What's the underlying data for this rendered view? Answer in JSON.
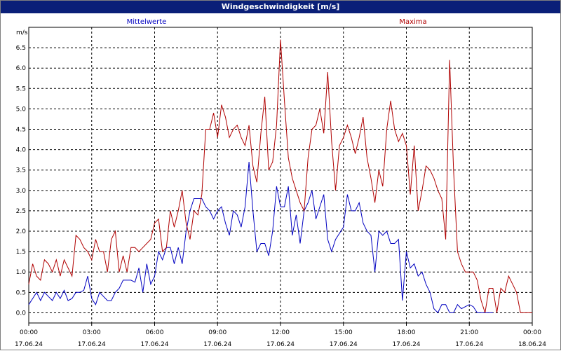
{
  "window": {
    "title": "Windgeschwindigkeit [m/s]"
  },
  "chart_data": {
    "type": "line",
    "title": "Windgeschwindigkeit [m/s]",
    "ylabel": "m/s",
    "ylim": [
      -0.25,
      7.0
    ],
    "yticks": [
      "0.0",
      "0.5",
      "1.0",
      "1.5",
      "2.0",
      "2.5",
      "3.0",
      "3.5",
      "4.0",
      "4.5",
      "5.0",
      "5.5",
      "6.0",
      "6.5"
    ],
    "xticks": [
      {
        "time": "00:00",
        "date": "17.06.24"
      },
      {
        "time": "03:00",
        "date": "17.06.24"
      },
      {
        "time": "06:00",
        "date": "17.06.24"
      },
      {
        "time": "09:00",
        "date": "17.06.24"
      },
      {
        "time": "12:00",
        "date": "17.06.24"
      },
      {
        "time": "15:00",
        "date": "17.06.24"
      },
      {
        "time": "18:00",
        "date": "17.06.24"
      },
      {
        "time": "21:00",
        "date": "17.06.24"
      },
      {
        "time": "00:00",
        "date": "18.06.24"
      }
    ],
    "x_unit": "hours since 17.06.24 00:00",
    "grid": true,
    "series": [
      {
        "name": "Mittelwerte",
        "color": "#0000c0",
        "points": [
          [
            0.0,
            0.2
          ],
          [
            0.25,
            0.35
          ],
          [
            0.5,
            0.5
          ],
          [
            0.75,
            0.3
          ],
          [
            1.0,
            0.5
          ],
          [
            1.25,
            0.4
          ],
          [
            1.5,
            0.3
          ],
          [
            1.75,
            0.5
          ],
          [
            2.0,
            0.35
          ],
          [
            2.25,
            0.55
          ],
          [
            2.5,
            0.3
          ],
          [
            2.75,
            0.35
          ],
          [
            3.0,
            0.5
          ],
          [
            3.25,
            0.5
          ],
          [
            3.5,
            0.55
          ],
          [
            3.75,
            0.9
          ],
          [
            4.0,
            0.35
          ],
          [
            4.25,
            0.2
          ],
          [
            4.5,
            0.5
          ],
          [
            4.75,
            0.4
          ],
          [
            5.0,
            0.3
          ],
          [
            5.25,
            0.3
          ],
          [
            5.5,
            0.5
          ],
          [
            5.75,
            0.6
          ],
          [
            6.0,
            0.8
          ],
          [
            6.25,
            0.8
          ],
          [
            6.5,
            0.8
          ],
          [
            6.75,
            0.75
          ],
          [
            7.0,
            1.1
          ],
          [
            7.25,
            0.5
          ],
          [
            7.5,
            1.2
          ],
          [
            7.75,
            0.7
          ],
          [
            8.0,
            0.9
          ],
          [
            8.25,
            1.5
          ],
          [
            8.5,
            1.3
          ],
          [
            8.75,
            1.6
          ],
          [
            9.0,
            1.6
          ],
          [
            9.25,
            1.2
          ],
          [
            9.5,
            1.6
          ],
          [
            9.75,
            1.2
          ],
          [
            10.0,
            2.0
          ],
          [
            10.25,
            2.5
          ],
          [
            10.5,
            2.8
          ],
          [
            10.75,
            2.8
          ],
          [
            11.0,
            2.8
          ],
          [
            11.25,
            2.6
          ],
          [
            11.5,
            2.5
          ],
          [
            11.75,
            2.3
          ],
          [
            12.0,
            2.5
          ],
          [
            12.25,
            2.6
          ],
          [
            12.5,
            2.2
          ],
          [
            12.75,
            1.9
          ],
          [
            13.0,
            2.5
          ],
          [
            13.25,
            2.4
          ],
          [
            13.5,
            2.1
          ],
          [
            13.75,
            2.6
          ],
          [
            14.0,
            3.7
          ],
          [
            14.25,
            2.5
          ],
          [
            14.5,
            1.5
          ],
          [
            14.75,
            1.7
          ],
          [
            15.0,
            1.7
          ],
          [
            15.25,
            1.4
          ],
          [
            15.5,
            2.0
          ],
          [
            15.75,
            3.1
          ],
          [
            16.0,
            2.6
          ],
          [
            16.25,
            2.6
          ],
          [
            16.5,
            3.1
          ],
          [
            16.75,
            1.9
          ],
          [
            17.0,
            2.4
          ],
          [
            17.25,
            1.7
          ],
          [
            17.5,
            2.5
          ],
          [
            17.75,
            2.7
          ],
          [
            18.0,
            3.0
          ],
          [
            18.25,
            2.3
          ],
          [
            18.5,
            2.6
          ],
          [
            18.75,
            2.9
          ],
          [
            19.0,
            1.8
          ],
          [
            19.25,
            1.5
          ],
          [
            19.5,
            1.8
          ],
          [
            20.0,
            2.1
          ],
          [
            20.25,
            2.9
          ],
          [
            20.5,
            2.5
          ],
          [
            20.75,
            2.5
          ],
          [
            21.0,
            2.7
          ],
          [
            21.25,
            2.2
          ],
          [
            21.5,
            2.0
          ],
          [
            21.75,
            1.9
          ],
          [
            22.0,
            1.0
          ],
          [
            22.25,
            2.0
          ],
          [
            22.5,
            1.9
          ],
          [
            22.75,
            2.0
          ],
          [
            23.0,
            1.7
          ],
          [
            23.25,
            1.7
          ],
          [
            23.5,
            1.8
          ],
          [
            23.75,
            0.3
          ],
          [
            24.0,
            1.5
          ],
          [
            24.25,
            1.1
          ],
          [
            24.5,
            1.2
          ],
          [
            24.75,
            0.9
          ],
          [
            25.0,
            1.0
          ],
          [
            25.25,
            0.7
          ],
          [
            25.5,
            0.5
          ],
          [
            25.75,
            0.1
          ],
          [
            26.0,
            0.0
          ],
          [
            26.25,
            0.2
          ],
          [
            26.5,
            0.2
          ],
          [
            26.75,
            0.0
          ],
          [
            27.0,
            0.0
          ],
          [
            27.25,
            0.2
          ],
          [
            27.5,
            0.1
          ],
          [
            27.75,
            0.15
          ],
          [
            28.0,
            0.2
          ],
          [
            28.25,
            0.15
          ],
          [
            28.5,
            0.0
          ],
          [
            28.75,
            0.0
          ],
          [
            29.0,
            0.0
          ],
          [
            29.5,
            0.0
          ]
        ]
      },
      {
        "name": "Maxima",
        "color": "#b00000",
        "points": [
          [
            0.0,
            0.7
          ],
          [
            0.25,
            1.2
          ],
          [
            0.5,
            0.9
          ],
          [
            0.75,
            0.8
          ],
          [
            1.0,
            1.3
          ],
          [
            1.25,
            1.2
          ],
          [
            1.5,
            1.0
          ],
          [
            1.75,
            1.3
          ],
          [
            2.0,
            0.9
          ],
          [
            2.25,
            1.3
          ],
          [
            2.5,
            1.1
          ],
          [
            2.75,
            0.9
          ],
          [
            3.0,
            1.9
          ],
          [
            3.25,
            1.8
          ],
          [
            3.5,
            1.6
          ],
          [
            3.75,
            1.5
          ],
          [
            4.0,
            1.3
          ],
          [
            4.25,
            1.8
          ],
          [
            4.5,
            1.5
          ],
          [
            4.75,
            1.5
          ],
          [
            5.0,
            1.0
          ],
          [
            5.25,
            1.8
          ],
          [
            5.5,
            2.0
          ],
          [
            5.75,
            1.0
          ],
          [
            6.0,
            1.4
          ],
          [
            6.25,
            1.0
          ],
          [
            6.5,
            1.6
          ],
          [
            6.75,
            1.6
          ],
          [
            7.0,
            1.5
          ],
          [
            7.25,
            1.6
          ],
          [
            7.5,
            1.7
          ],
          [
            7.75,
            1.8
          ],
          [
            8.0,
            2.2
          ],
          [
            8.25,
            2.3
          ],
          [
            8.5,
            1.5
          ],
          [
            8.75,
            1.6
          ],
          [
            9.0,
            2.5
          ],
          [
            9.25,
            2.1
          ],
          [
            9.5,
            2.5
          ],
          [
            9.75,
            3.0
          ],
          [
            10.0,
            2.2
          ],
          [
            10.25,
            1.8
          ],
          [
            10.5,
            2.5
          ],
          [
            10.75,
            2.4
          ],
          [
            11.0,
            2.9
          ],
          [
            11.25,
            4.5
          ],
          [
            11.5,
            4.5
          ],
          [
            11.75,
            4.9
          ],
          [
            12.0,
            4.3
          ],
          [
            12.25,
            5.1
          ],
          [
            12.5,
            4.8
          ],
          [
            12.75,
            4.3
          ],
          [
            13.0,
            4.5
          ],
          [
            13.25,
            4.6
          ],
          [
            13.5,
            4.3
          ],
          [
            13.75,
            4.1
          ],
          [
            14.0,
            4.6
          ],
          [
            14.25,
            3.6
          ],
          [
            14.5,
            3.2
          ],
          [
            14.75,
            4.4
          ],
          [
            15.0,
            5.3
          ],
          [
            15.25,
            3.5
          ],
          [
            15.5,
            3.7
          ],
          [
            15.75,
            4.6
          ],
          [
            16.0,
            6.7
          ],
          [
            16.25,
            5.2
          ],
          [
            16.5,
            3.8
          ],
          [
            16.75,
            3.3
          ],
          [
            17.0,
            3.0
          ],
          [
            17.25,
            2.7
          ],
          [
            17.5,
            2.5
          ],
          [
            17.75,
            3.8
          ],
          [
            18.0,
            4.5
          ],
          [
            18.25,
            4.6
          ],
          [
            18.5,
            5.0
          ],
          [
            18.75,
            4.4
          ],
          [
            19.0,
            5.9
          ],
          [
            19.25,
            4.2
          ],
          [
            19.5,
            3.0
          ],
          [
            19.75,
            4.1
          ],
          [
            20.0,
            4.3
          ],
          [
            20.25,
            4.6
          ],
          [
            20.5,
            4.3
          ],
          [
            20.75,
            3.9
          ],
          [
            21.0,
            4.3
          ],
          [
            21.25,
            4.8
          ],
          [
            21.5,
            3.8
          ],
          [
            21.75,
            3.3
          ],
          [
            22.0,
            2.7
          ],
          [
            22.25,
            3.5
          ],
          [
            22.5,
            3.1
          ],
          [
            22.75,
            4.5
          ],
          [
            23.0,
            5.2
          ],
          [
            23.25,
            4.5
          ],
          [
            23.5,
            4.2
          ],
          [
            23.75,
            4.4
          ],
          [
            24.0,
            4.1
          ],
          [
            24.25,
            2.9
          ],
          [
            24.5,
            4.1
          ],
          [
            24.75,
            2.5
          ],
          [
            25.0,
            3.0
          ],
          [
            25.25,
            3.6
          ],
          [
            25.5,
            3.5
          ],
          [
            25.75,
            3.3
          ],
          [
            26.0,
            3.0
          ],
          [
            26.25,
            2.8
          ],
          [
            26.5,
            1.8
          ],
          [
            26.75,
            6.2
          ],
          [
            27.0,
            3.5
          ],
          [
            27.25,
            1.5
          ],
          [
            27.5,
            1.2
          ],
          [
            27.75,
            1.0
          ],
          [
            28.0,
            1.0
          ],
          [
            28.25,
            1.0
          ],
          [
            28.5,
            0.8
          ],
          [
            28.75,
            0.3
          ],
          [
            29.0,
            0.0
          ],
          [
            29.25,
            0.6
          ],
          [
            29.5,
            0.6
          ],
          [
            29.75,
            0.0
          ],
          [
            30.0,
            0.6
          ],
          [
            30.25,
            0.5
          ],
          [
            30.5,
            0.9
          ],
          [
            30.75,
            0.7
          ],
          [
            31.0,
            0.5
          ],
          [
            31.25,
            0.0
          ],
          [
            31.5,
            0.0
          ],
          [
            31.75,
            0.0
          ],
          [
            32.0,
            0.0
          ]
        ]
      }
    ]
  }
}
